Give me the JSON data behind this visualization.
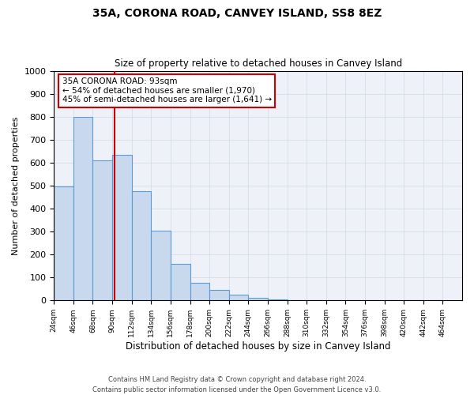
{
  "title1": "35A, CORONA ROAD, CANVEY ISLAND, SS8 8EZ",
  "title2": "Size of property relative to detached houses in Canvey Island",
  "xlabel": "Distribution of detached houses by size in Canvey Island",
  "ylabel": "Number of detached properties",
  "bin_edges": [
    24,
    46,
    68,
    90,
    112,
    134,
    156,
    178,
    200,
    222,
    244,
    266,
    288,
    310,
    332,
    354,
    376,
    398,
    420,
    442,
    464
  ],
  "bar_heights": [
    497,
    800,
    610,
    635,
    475,
    305,
    160,
    78,
    47,
    25,
    12,
    3,
    2,
    1,
    0,
    0,
    0,
    0,
    0,
    0
  ],
  "bar_color": "#c8d9ee",
  "bar_edge_color": "#5b9bd5",
  "property_size": 93,
  "vline_color": "#cc0000",
  "ylim": [
    0,
    1000
  ],
  "yticks": [
    0,
    100,
    200,
    300,
    400,
    500,
    600,
    700,
    800,
    900,
    1000
  ],
  "annotation_line1": "35A CORONA ROAD: 93sqm",
  "annotation_line2": "← 54% of detached houses are smaller (1,970)",
  "annotation_line3": "45% of semi-detached houses are larger (1,641) →",
  "annotation_box_color": "#ffffff",
  "annotation_box_edge": "#cc0000",
  "footer": "Contains HM Land Registry data © Crown copyright and database right 2024.\nContains public sector information licensed under the Open Government Licence v3.0.",
  "grid_color": "#d0d8e8",
  "bg_color": "#eef2f8"
}
